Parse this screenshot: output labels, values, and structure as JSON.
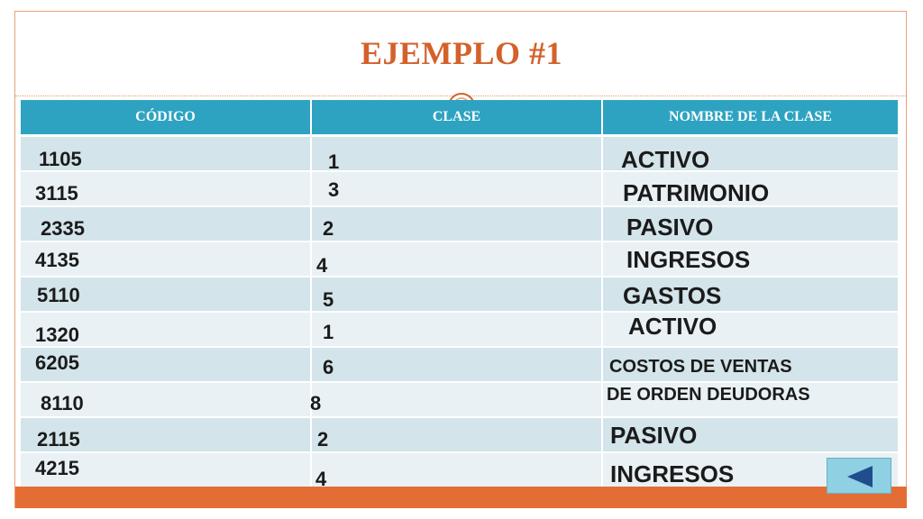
{
  "title": "EJEMPLO #1",
  "table": {
    "headers": [
      "CÓDIGO",
      "CLASE",
      "NOMBRE DE LA CLASE"
    ],
    "rows": [
      {
        "codigo": "1105",
        "clase": "1",
        "nombre": "ACTIVO"
      },
      {
        "codigo": "3115",
        "clase": "3",
        "nombre": "PATRIMONIO"
      },
      {
        "codigo": "2335",
        "clase": "2",
        "nombre": "PASIVO"
      },
      {
        "codigo": "4135",
        "clase": "4",
        "nombre": "INGRESOS"
      },
      {
        "codigo": "5110",
        "clase": "5",
        "nombre": "GASTOS"
      },
      {
        "codigo": "1320",
        "clase": "1",
        "nombre": "ACTIVO"
      },
      {
        "codigo": "6205",
        "clase": "6",
        "nombre": "COSTOS DE VENTAS"
      },
      {
        "codigo": "8110",
        "clase": "8",
        "nombre": "DE ORDEN DEUDORAS"
      },
      {
        "codigo": "2115",
        "clase": "2",
        "nombre": "PASIVO"
      },
      {
        "codigo": "4215",
        "clase": "4",
        "nombre": "INGRESOS"
      }
    ]
  },
  "colors": {
    "title": "#d3612b",
    "header_bg": "#2ea3c1",
    "row_odd": "#d3e4ea",
    "row_even": "#e9f1f4",
    "accent_band": "#e46d35"
  },
  "nav": {
    "back_icon": "triangle-left-icon"
  }
}
